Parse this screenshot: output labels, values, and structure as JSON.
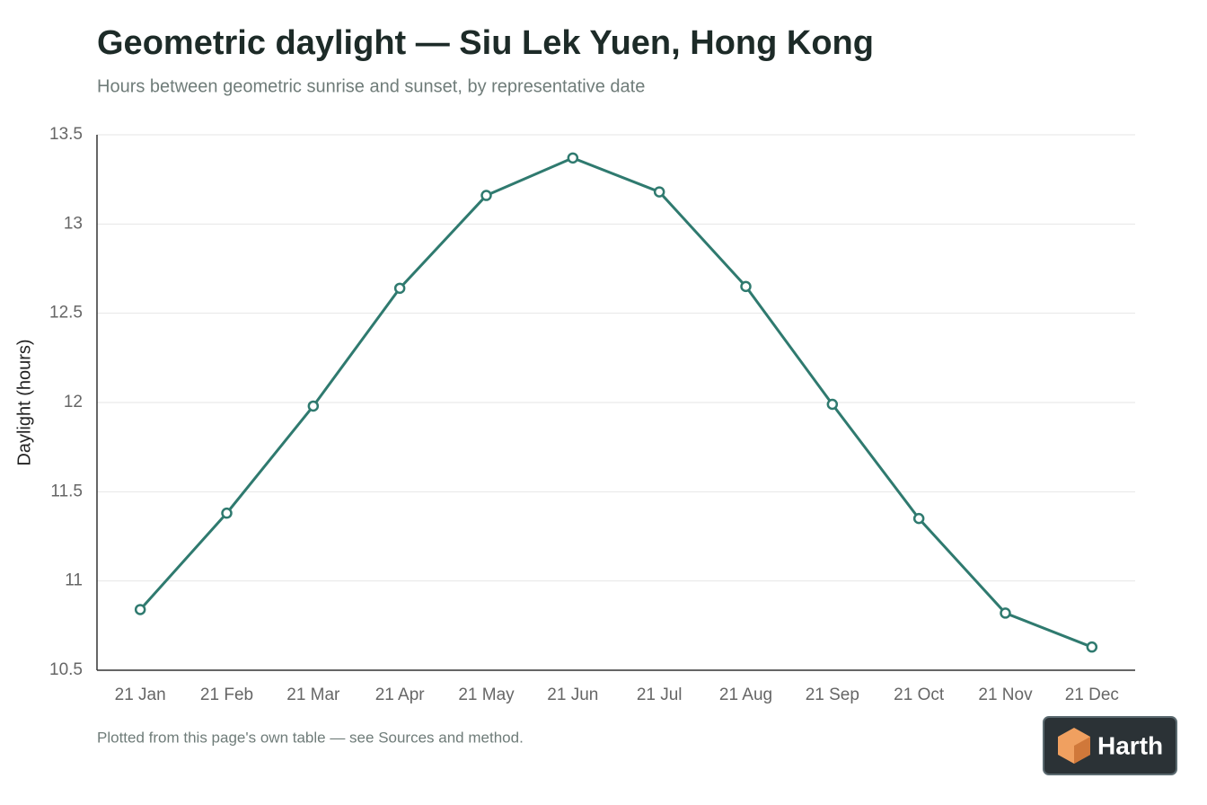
{
  "chart_data": {
    "type": "line",
    "title": "Geometric daylight — Siu Lek Yuen, Hong Kong",
    "subtitle": "Hours between geometric sunrise and sunset, by representative date",
    "y_label": "Daylight (hours)",
    "note": "Plotted from this page's own table — see Sources and method.",
    "categories": [
      "21 Jan",
      "21 Feb",
      "21 Mar",
      "21 Apr",
      "21 May",
      "21 Jun",
      "21 Jul",
      "21 Aug",
      "21 Sep",
      "21 Oct",
      "21 Nov",
      "21 Dec"
    ],
    "series": [
      {
        "name": "Daylight",
        "color": "#2f7a6f",
        "values": [
          10.84,
          11.38,
          11.98,
          12.64,
          13.16,
          13.37,
          13.18,
          12.65,
          11.99,
          11.35,
          10.82,
          10.63
        ]
      }
    ],
    "ylim": [
      10.5,
      13.5
    ],
    "yticks": [
      10.5,
      11,
      11.5,
      12,
      12.5,
      13,
      13.5
    ],
    "grid": true
  },
  "brand": "Harth"
}
